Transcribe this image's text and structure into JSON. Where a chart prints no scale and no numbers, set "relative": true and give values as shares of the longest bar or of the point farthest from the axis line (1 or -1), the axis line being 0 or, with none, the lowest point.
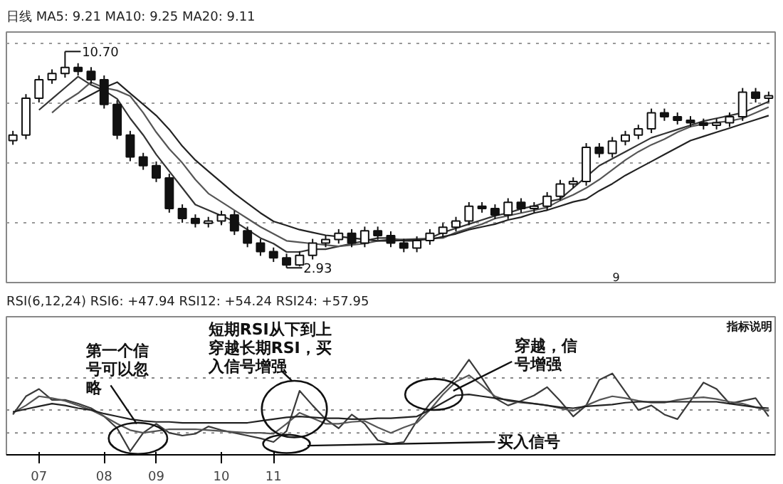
{
  "chart_data": [
    {
      "type": "candlestick",
      "title": "日线 MA5: 9.21 MA10: 9.25 MA20: 9.11",
      "tick_labels": false,
      "grid": "y",
      "ylim": [
        2.4,
        11.4
      ],
      "yticks": [
        {
          "value": 4.55,
          "label": null
        },
        {
          "value": 6.7,
          "label": null
        },
        {
          "value": 8.85,
          "label": null
        },
        {
          "value": 11.0,
          "label": null
        }
      ],
      "categories": [
        null,
        null,
        null,
        null,
        null,
        null,
        null,
        null,
        null,
        null,
        null,
        null,
        null,
        null,
        null,
        null,
        null,
        null,
        null,
        null,
        null,
        null,
        null,
        null,
        null,
        null,
        null,
        null,
        null,
        null,
        null,
        null,
        null,
        null,
        null,
        null,
        null,
        null,
        null,
        null,
        null,
        null,
        null,
        null,
        null,
        null,
        null,
        null,
        null,
        null,
        null,
        null,
        null,
        null,
        null,
        null,
        null,
        null,
        null
      ],
      "ohlc": [
        [
          7.5,
          7.85,
          7.35,
          7.7
        ],
        [
          7.7,
          9.17,
          7.55,
          9.02
        ],
        [
          9.02,
          9.84,
          8.87,
          9.69
        ],
        [
          9.69,
          10.06,
          9.54,
          9.91
        ],
        [
          9.91,
          10.7,
          9.76,
          10.13
        ],
        [
          10.13,
          10.28,
          9.84,
          9.99
        ],
        [
          9.99,
          10.14,
          9.54,
          9.69
        ],
        [
          9.69,
          9.84,
          8.65,
          8.8
        ],
        [
          8.8,
          8.95,
          7.55,
          7.7
        ],
        [
          7.7,
          7.85,
          6.76,
          6.91
        ],
        [
          6.91,
          7.06,
          6.45,
          6.6
        ],
        [
          6.6,
          6.75,
          6.01,
          6.16
        ],
        [
          6.16,
          6.31,
          4.91,
          5.06
        ],
        [
          5.06,
          5.21,
          4.55,
          4.7
        ],
        [
          4.7,
          4.85,
          4.38,
          4.53
        ],
        [
          4.53,
          4.76,
          4.38,
          4.61
        ],
        [
          4.61,
          4.98,
          4.46,
          4.83
        ],
        [
          4.83,
          4.98,
          4.11,
          4.26
        ],
        [
          4.26,
          4.41,
          3.67,
          3.82
        ],
        [
          3.82,
          3.97,
          3.36,
          3.51
        ],
        [
          3.51,
          3.66,
          3.14,
          3.29
        ],
        [
          3.29,
          3.44,
          2.93,
          3.03
        ],
        [
          3.03,
          3.53,
          2.98,
          3.38
        ],
        [
          3.38,
          3.97,
          3.23,
          3.82
        ],
        [
          3.82,
          4.1,
          3.67,
          3.95
        ],
        [
          3.95,
          4.32,
          3.8,
          4.17
        ],
        [
          4.17,
          4.32,
          3.67,
          3.82
        ],
        [
          3.82,
          4.41,
          3.67,
          4.26
        ],
        [
          4.26,
          4.41,
          3.94,
          4.09
        ],
        [
          4.09,
          4.24,
          3.67,
          3.82
        ],
        [
          3.82,
          3.97,
          3.49,
          3.64
        ],
        [
          3.64,
          4.06,
          3.49,
          3.91
        ],
        [
          3.91,
          4.32,
          3.76,
          4.17
        ],
        [
          4.17,
          4.54,
          4.02,
          4.39
        ],
        [
          4.39,
          4.76,
          4.24,
          4.61
        ],
        [
          4.61,
          5.29,
          4.46,
          5.14
        ],
        [
          5.14,
          5.29,
          4.91,
          5.06
        ],
        [
          5.06,
          5.21,
          4.68,
          4.83
        ],
        [
          4.83,
          5.43,
          4.68,
          5.28
        ],
        [
          5.28,
          5.43,
          4.91,
          5.06
        ],
        [
          5.06,
          5.29,
          4.91,
          5.14
        ],
        [
          5.14,
          5.65,
          4.99,
          5.5
        ],
        [
          5.5,
          6.09,
          5.35,
          5.94
        ],
        [
          5.94,
          6.18,
          5.79,
          6.03
        ],
        [
          6.03,
          7.41,
          5.88,
          7.26
        ],
        [
          7.26,
          7.41,
          6.89,
          7.04
        ],
        [
          7.04,
          7.63,
          6.89,
          7.48
        ],
        [
          7.48,
          7.85,
          7.33,
          7.7
        ],
        [
          7.7,
          8.07,
          7.55,
          7.92
        ],
        [
          7.92,
          8.65,
          7.77,
          8.5
        ],
        [
          8.5,
          8.65,
          8.21,
          8.36
        ],
        [
          8.36,
          8.51,
          8.08,
          8.23
        ],
        [
          8.23,
          8.38,
          7.99,
          8.14
        ],
        [
          8.14,
          8.29,
          7.9,
          8.05
        ],
        [
          8.05,
          8.29,
          7.9,
          8.14
        ],
        [
          8.14,
          8.51,
          7.99,
          8.36
        ],
        [
          8.36,
          9.39,
          8.21,
          9.24
        ],
        [
          9.24,
          9.39,
          8.87,
          9.02
        ],
        [
          9.02,
          9.26,
          8.87,
          9.11
        ]
      ],
      "series": [
        {
          "type": "line",
          "color": "#333333",
          "values": [
            null,
            null,
            8.6,
            9.0,
            9.4,
            9.8,
            9.5,
            9.3,
            9.0,
            8.3,
            7.7,
            7.0,
            6.4,
            5.8,
            5.2,
            5.0,
            4.8,
            4.6,
            4.3,
            4.0,
            3.8,
            3.5,
            3.5,
            3.6,
            3.6,
            3.7,
            3.8,
            3.9,
            4.0,
            4.0,
            3.9,
            3.9,
            4.0,
            4.2,
            4.35,
            4.5,
            4.65,
            4.8,
            4.9,
            5.05,
            5.15,
            5.3,
            5.4,
            5.8,
            6.2,
            6.6,
            6.85,
            7.1,
            7.35,
            7.6,
            7.75,
            7.9,
            8.05,
            8.2,
            8.3,
            8.4,
            8.5,
            8.7,
            8.9
          ]
        },
        {
          "type": "line",
          "color": "#555555",
          "values": [
            null,
            null,
            null,
            8.5,
            8.9,
            9.2,
            9.6,
            9.4,
            9.3,
            9.1,
            8.5,
            7.8,
            7.2,
            6.7,
            6.1,
            5.6,
            5.3,
            5.0,
            4.7,
            4.4,
            4.15,
            3.9,
            3.85,
            3.8,
            3.75,
            3.7,
            3.75,
            3.8,
            3.9,
            3.95,
            3.95,
            3.97,
            3.98,
            4.0,
            4.2,
            4.35,
            4.5,
            4.7,
            4.8,
            4.9,
            5.0,
            5.1,
            5.35,
            5.55,
            5.8,
            6.1,
            6.45,
            6.8,
            7.1,
            7.35,
            7.55,
            7.8,
            8.0,
            8.1,
            8.15,
            8.2,
            8.3,
            8.5,
            8.7
          ]
        },
        {
          "type": "line",
          "color": "#222222",
          "values": [
            null,
            null,
            null,
            null,
            null,
            8.9,
            9.15,
            9.4,
            9.6,
            9.2,
            8.8,
            8.4,
            7.9,
            7.3,
            6.8,
            6.4,
            6.0,
            5.6,
            5.25,
            4.9,
            4.6,
            4.45,
            4.3,
            4.2,
            4.1,
            4.05,
            4.0,
            3.95,
            3.9,
            3.9,
            3.92,
            3.94,
            3.95,
            4.05,
            4.15,
            4.3,
            4.4,
            4.5,
            4.65,
            4.75,
            4.9,
            5.0,
            5.15,
            5.3,
            5.4,
            5.7,
            5.95,
            6.25,
            6.5,
            6.75,
            7.0,
            7.25,
            7.5,
            7.65,
            7.8,
            7.95,
            8.1,
            8.25,
            8.4
          ]
        }
      ],
      "annotations": [
        "10.70",
        "2.93",
        "9"
      ]
    },
    {
      "type": "line",
      "title": "RSI(6,12,24) RSI6: +47.94 RSI12: +54.24 RSI24: +57.95",
      "relative": true,
      "tick_labels": "x",
      "categories": [
        null,
        null,
        "07",
        null,
        null,
        null,
        null,
        "08",
        null,
        null,
        null,
        "09",
        null,
        null,
        null,
        null,
        "10",
        null,
        null,
        null,
        "11",
        null,
        null,
        null,
        null,
        null,
        null,
        null,
        null,
        null,
        null,
        null,
        null,
        null,
        null,
        null,
        null,
        null,
        null,
        null,
        null,
        null,
        null,
        null,
        null,
        null,
        null,
        null,
        null,
        null,
        null,
        null,
        null,
        null,
        null,
        null,
        null,
        null,
        null
      ],
      "series": [
        {
          "color": "#3a3a3a",
          "values": [
            0.4,
            0.6,
            0.68,
            0.56,
            0.56,
            0.52,
            0.47,
            0.38,
            0.25,
            0.0,
            0.2,
            0.3,
            0.2,
            0.17,
            0.19,
            0.27,
            0.23,
            0.2,
            0.17,
            0.14,
            0.1,
            0.22,
            0.66,
            0.5,
            0.35,
            0.25,
            0.4,
            0.3,
            0.12,
            0.08,
            0.1,
            0.33,
            0.52,
            0.66,
            0.8,
            1.0,
            0.8,
            0.58,
            0.5,
            0.55,
            0.61,
            0.7,
            0.55,
            0.38,
            0.5,
            0.78,
            0.85,
            0.65,
            0.45,
            0.5,
            0.4,
            0.35,
            0.55,
            0.75,
            0.68,
            0.52,
            0.55,
            0.58,
            0.38
          ]
        },
        {
          "color": "#555555",
          "values": [
            0.42,
            0.5,
            0.6,
            0.58,
            0.55,
            0.5,
            0.45,
            0.38,
            0.3,
            0.23,
            0.2,
            0.22,
            0.24,
            0.24,
            0.24,
            0.23,
            0.22,
            0.21,
            0.2,
            0.2,
            0.19,
            0.3,
            0.42,
            0.36,
            0.3,
            0.3,
            0.32,
            0.33,
            0.26,
            0.2,
            0.26,
            0.31,
            0.45,
            0.62,
            0.76,
            0.83,
            0.72,
            0.6,
            0.55,
            0.53,
            0.52,
            0.5,
            0.47,
            0.44,
            0.5,
            0.56,
            0.6,
            0.58,
            0.55,
            0.53,
            0.53,
            0.56,
            0.58,
            0.59,
            0.57,
            0.54,
            0.52,
            0.48,
            0.44
          ]
        },
        {
          "color": "#222222",
          "values": [
            0.43,
            0.46,
            0.49,
            0.52,
            0.5,
            0.47,
            0.45,
            0.41,
            0.38,
            0.35,
            0.33,
            0.32,
            0.32,
            0.31,
            0.31,
            0.31,
            0.31,
            0.31,
            0.31,
            0.33,
            0.35,
            0.37,
            0.38,
            0.37,
            0.36,
            0.36,
            0.35,
            0.35,
            0.36,
            0.36,
            0.37,
            0.38,
            0.45,
            0.53,
            0.61,
            0.62,
            0.6,
            0.58,
            0.56,
            0.54,
            0.52,
            0.5,
            0.48,
            0.47,
            0.49,
            0.5,
            0.51,
            0.53,
            0.54,
            0.54,
            0.54,
            0.54,
            0.54,
            0.54,
            0.54,
            0.52,
            0.5,
            0.48,
            0.47
          ]
        }
      ],
      "ref_lines": [
        {
          "axis": "y",
          "value": 0.8,
          "line_style": "dotted",
          "color": "#888888"
        },
        {
          "axis": "y",
          "value": 0.45,
          "line_style": "dotted",
          "color": "#888888"
        },
        {
          "axis": "y",
          "value": 0.2,
          "line_style": "dotted",
          "color": "#888888"
        }
      ],
      "annotations": [
        "第一个信号可以忽略",
        "短期RSI从下到上穿越长期RSI，买入信号增强",
        "穿越，信号增强",
        "买入信号",
        "指标说明"
      ]
    }
  ]
}
